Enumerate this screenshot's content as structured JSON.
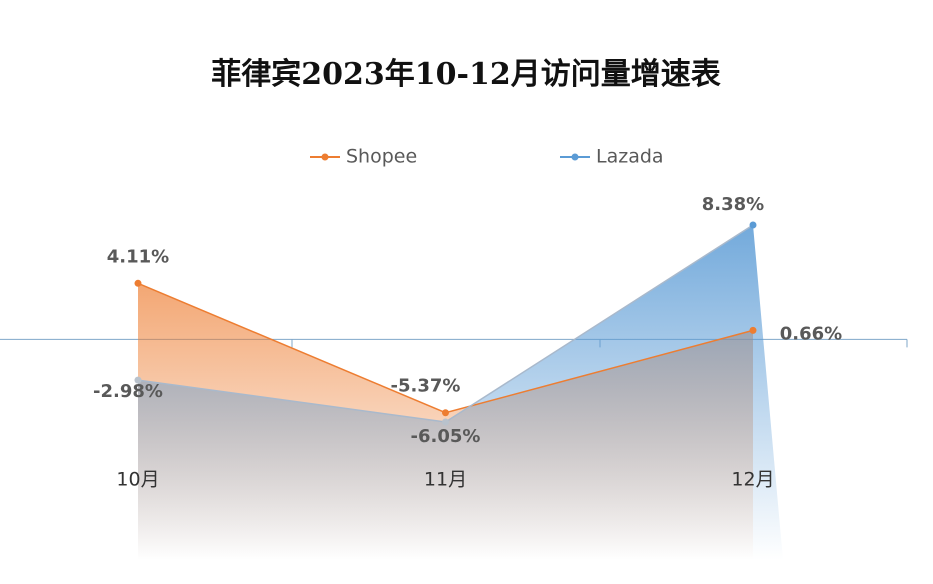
{
  "chart_data": {
    "type": "line",
    "title": "菲律宾2023年10-12月访问量增速表",
    "categories": [
      "10月",
      "11月",
      "12月"
    ],
    "series": [
      {
        "name": "Shopee",
        "color": "#ed7d31",
        "values": [
          4.11,
          -5.37,
          0.66
        ],
        "value_labels": [
          "4.11%",
          "-5.37%",
          "0.66%"
        ]
      },
      {
        "name": "Lazada",
        "color": "#5b9bd5",
        "values": [
          -2.98,
          -6.05,
          8.38
        ],
        "value_labels": [
          "-2.98%",
          "-6.05%",
          "8.38%"
        ]
      }
    ],
    "legend": "top"
  }
}
